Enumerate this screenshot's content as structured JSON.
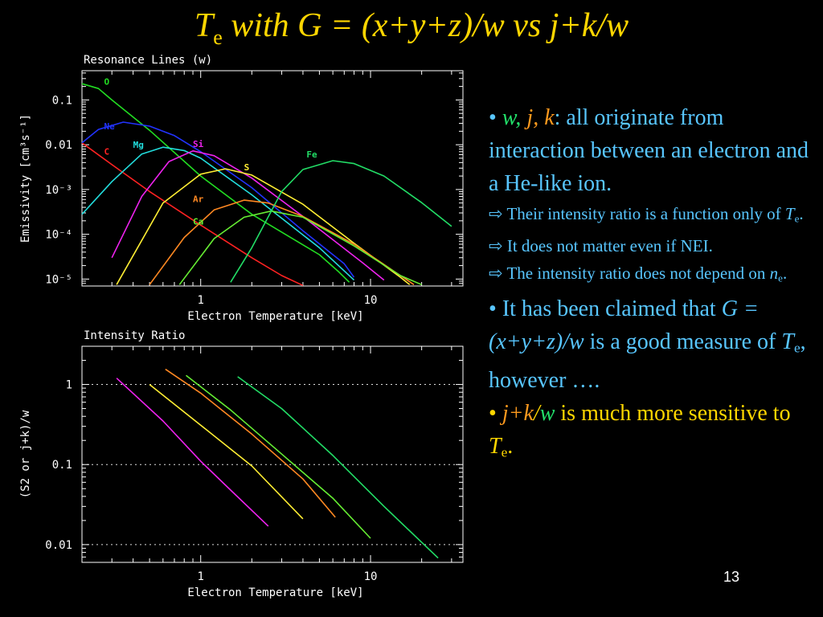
{
  "slide": {
    "title_T": "T",
    "title_sub": "e",
    "title_rest": " with G = (x+y+z)/w vs j+k/w",
    "page_number": "13"
  },
  "bullets": {
    "b1": {
      "dot": "• ",
      "w": "w,",
      "j": " j,",
      "k": " k",
      "rest": ": all originate from interaction between an electron and a He-like ion."
    },
    "s1": {
      "arrow": "⇨",
      "text": "  Their intensity ratio is a function only of ",
      "T": "T",
      "sub": "e",
      "end": "."
    },
    "s2": {
      "arrow": "⇨",
      "text": "  It does not matter even if NEI."
    },
    "s3": {
      "arrow": "⇨",
      "text": "  The intensity ratio does not depend on ",
      "n": "n",
      "sub": "e",
      "end": "."
    },
    "b2": {
      "dot": "• ",
      "text": "It has been claimed that ",
      "G": "G",
      "formula": " = (x+y+z)/w",
      "mid": " is a good measure of ",
      "T": "T",
      "sub": "e",
      "end": ", however …."
    },
    "b3": {
      "dot": "• ",
      "jk": "j+k",
      "slash": "/",
      "w": "w",
      "rest": " is much more sensitive to ",
      "T": "T",
      "sub": "e",
      "end": "."
    }
  },
  "colors": {
    "background": "#000000",
    "title": "#ffd600",
    "text_blue": "#58c6ff",
    "axes": "#ffffff",
    "O": "#22dd22",
    "Ne": "#2233ff",
    "Mg": "#22dddd",
    "Si": "#ee22ee",
    "S": "#ffee33",
    "Ar": "#ff8822",
    "Ca": "#66ee33",
    "Fe": "#22dd66",
    "C": "#ff2222"
  },
  "chart_data": [
    {
      "type": "line",
      "title": "Resonance Lines (w)",
      "xlabel": "Electron Temperature [keV]",
      "ylabel": "Emissivity [cm³s⁻¹]",
      "xscale": "log",
      "yscale": "log",
      "xlim": [
        0.2,
        35
      ],
      "ylim": [
        7e-06,
        0.45
      ],
      "xticks": [
        {
          "v": 1,
          "label": "1"
        },
        {
          "v": 10,
          "label": "10"
        }
      ],
      "yticks": [
        {
          "v": 0.1,
          "label": "0.1"
        },
        {
          "v": 0.01,
          "label": "0.01"
        },
        {
          "v": 0.001,
          "label": "10⁻³"
        },
        {
          "v": 0.0001,
          "label": "10⁻⁴"
        },
        {
          "v": 1e-05,
          "label": "10⁻⁵"
        }
      ],
      "grid": false,
      "series": [
        {
          "name": "C",
          "color": "#ff2222",
          "label_at": [
            0.27,
            0.006
          ],
          "points": [
            [
              0.2,
              0.011
            ],
            [
              0.3,
              0.0036
            ],
            [
              0.5,
              0.0009
            ],
            [
              1,
              0.00016
            ],
            [
              2,
              3e-05
            ],
            [
              3,
              1.2e-05
            ],
            [
              4,
              7.2e-06
            ]
          ]
        },
        {
          "name": "O",
          "color": "#22dd22",
          "label_at": [
            0.27,
            0.22
          ],
          "points": [
            [
              0.2,
              0.23
            ],
            [
              0.25,
              0.18
            ],
            [
              0.3,
              0.1
            ],
            [
              0.5,
              0.021
            ],
            [
              1,
              0.002
            ],
            [
              2,
              0.00028
            ],
            [
              5,
              3.5e-05
            ],
            [
              6.5,
              1.45e-05
            ],
            [
              7.5,
              8.5e-06
            ]
          ]
        },
        {
          "name": "Ne",
          "color": "#2233ff",
          "label_at": [
            0.27,
            0.022
          ],
          "points": [
            [
              0.2,
              0.011
            ],
            [
              0.25,
              0.022
            ],
            [
              0.35,
              0.032
            ],
            [
              0.5,
              0.026
            ],
            [
              0.7,
              0.016
            ],
            [
              1,
              0.007
            ],
            [
              2,
              0.0011
            ],
            [
              4,
              0.00012
            ],
            [
              7,
              2.2e-05
            ],
            [
              8,
              1.1e-05
            ]
          ]
        },
        {
          "name": "Mg",
          "color": "#22dddd",
          "label_at": [
            0.4,
            0.0085
          ],
          "points": [
            [
              0.2,
              0.00028
            ],
            [
              0.3,
              0.0015
            ],
            [
              0.45,
              0.0062
            ],
            [
              0.6,
              0.0088
            ],
            [
              0.8,
              0.0074
            ],
            [
              1,
              0.005
            ],
            [
              2,
              0.00076
            ],
            [
              5,
              5e-05
            ],
            [
              8,
              9.5e-06
            ]
          ]
        },
        {
          "name": "Si",
          "color": "#ee22ee",
          "label_at": [
            0.9,
            0.0088
          ],
          "points": [
            [
              0.3,
              3e-05
            ],
            [
              0.45,
              0.0007
            ],
            [
              0.65,
              0.0042
            ],
            [
              0.9,
              0.0073
            ],
            [
              1.2,
              0.0057
            ],
            [
              2,
              0.0018
            ],
            [
              4,
              0.00025
            ],
            [
              9,
              2.3e-05
            ],
            [
              12,
              9.5e-06
            ]
          ]
        },
        {
          "name": "S",
          "color": "#ffee33",
          "label_at": [
            1.8,
            0.0027
          ],
          "points": [
            [
              0.32,
              7.5e-06
            ],
            [
              0.6,
              0.0005
            ],
            [
              1,
              0.0022
            ],
            [
              1.4,
              0.0029
            ],
            [
              2,
              0.0021
            ],
            [
              4,
              0.00047
            ],
            [
              8,
              6.3e-05
            ],
            [
              15,
              1.1e-05
            ],
            [
              17,
              7.5e-06
            ]
          ]
        },
        {
          "name": "Ar",
          "color": "#ff8822",
          "label_at": [
            0.9,
            0.00053
          ],
          "points": [
            [
              0.5,
              7.5e-06
            ],
            [
              0.8,
              8.5e-05
            ],
            [
              1.2,
              0.00035
            ],
            [
              1.8,
              0.00058
            ],
            [
              2.5,
              0.0005
            ],
            [
              4,
              0.00025
            ],
            [
              8,
              6e-05
            ],
            [
              15,
              1.2e-05
            ],
            [
              18,
              7.5e-06
            ]
          ]
        },
        {
          "name": "Ca",
          "color": "#66ee33",
          "label_at": [
            0.9,
            0.000165
          ],
          "points": [
            [
              0.75,
              7.5e-06
            ],
            [
              1.2,
              8e-05
            ],
            [
              1.8,
              0.00024
            ],
            [
              2.6,
              0.00033
            ],
            [
              4,
              0.00024
            ],
            [
              8,
              5.5e-05
            ],
            [
              15,
              1.2e-05
            ],
            [
              20,
              7.5e-06
            ]
          ]
        },
        {
          "name": "Fe",
          "color": "#22dd66",
          "label_at": [
            4.2,
            0.0052
          ],
          "points": [
            [
              1.5,
              8.5e-06
            ],
            [
              2,
              5e-05
            ],
            [
              3,
              0.0009
            ],
            [
              4,
              0.0028
            ],
            [
              6,
              0.0044
            ],
            [
              8,
              0.0038
            ],
            [
              12,
              0.002
            ],
            [
              20,
              0.00051
            ],
            [
              30,
              0.00015
            ]
          ]
        }
      ]
    },
    {
      "type": "line",
      "title": "Intensity Ratio",
      "xlabel": "Electron Temperature [keV]",
      "ylabel": "(S2 or j+k)/w",
      "xscale": "log",
      "yscale": "log",
      "xlim": [
        0.2,
        35
      ],
      "ylim": [
        0.006,
        3
      ],
      "xticks": [
        {
          "v": 1,
          "label": "1"
        },
        {
          "v": 10,
          "label": "10"
        }
      ],
      "yticks": [
        {
          "v": 1,
          "label": "1"
        },
        {
          "v": 0.1,
          "label": "0.1"
        },
        {
          "v": 0.01,
          "label": "0.01"
        }
      ],
      "grid": "dotted horizontal at 1, 0.1, 0.01",
      "series": [
        {
          "color": "#ee22ee",
          "points": [
            [
              0.32,
              1.2
            ],
            [
              0.6,
              0.35
            ],
            [
              1,
              0.11
            ],
            [
              1.5,
              0.048
            ],
            [
              2.5,
              0.017
            ]
          ]
        },
        {
          "color": "#ffee33",
          "points": [
            [
              0.5,
              1.0
            ],
            [
              1,
              0.31
            ],
            [
              2,
              0.096
            ],
            [
              4,
              0.021
            ]
          ]
        },
        {
          "color": "#ff8822",
          "points": [
            [
              0.62,
              1.55
            ],
            [
              1,
              0.78
            ],
            [
              2,
              0.24
            ],
            [
              4,
              0.066
            ],
            [
              6.2,
              0.022
            ]
          ]
        },
        {
          "color": "#66ee33",
          "points": [
            [
              0.82,
              1.3
            ],
            [
              1.5,
              0.48
            ],
            [
              3,
              0.135
            ],
            [
              6,
              0.038
            ],
            [
              10,
              0.012
            ]
          ]
        },
        {
          "color": "#22dd66",
          "points": [
            [
              1.65,
              1.25
            ],
            [
              3,
              0.5
            ],
            [
              6,
              0.13
            ],
            [
              12,
              0.03
            ],
            [
              25,
              0.0068
            ]
          ]
        }
      ]
    }
  ]
}
